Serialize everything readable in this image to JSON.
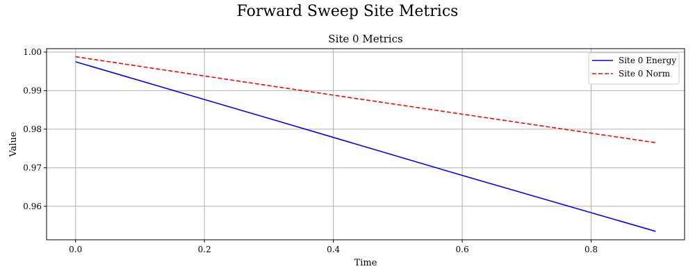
{
  "figure_title": "Forward Sweep Site Metrics",
  "chart_data": {
    "type": "line",
    "title": "Site 0 Metrics",
    "xlabel": "Time",
    "ylabel": "Value",
    "xlim": [
      -0.045,
      0.945
    ],
    "ylim": [
      0.9513,
      1.0009
    ],
    "xticks": [
      0.0,
      0.2,
      0.4,
      0.6,
      0.8
    ],
    "xtick_labels": [
      "0.0",
      "0.2",
      "0.4",
      "0.6",
      "0.8"
    ],
    "yticks": [
      0.96,
      0.97,
      0.98,
      0.99,
      1.0
    ],
    "ytick_labels": [
      "0.96",
      "0.97",
      "0.98",
      "0.99",
      "1.00"
    ],
    "grid": true,
    "legend_position": "top-right",
    "series": [
      {
        "name": "Site 0 Energy",
        "color": "#0000ff",
        "style": "solid",
        "x": [
          0.0,
          0.3,
          0.6,
          0.9
        ],
        "y": [
          0.9975,
          0.9828,
          0.968,
          0.9535
        ]
      },
      {
        "name": "Site 0 Norm",
        "color": "#ff0000",
        "style": "dashed",
        "x": [
          0.0,
          0.3,
          0.6,
          0.9
        ],
        "y": [
          0.9988,
          0.9913,
          0.9839,
          0.9765
        ]
      }
    ]
  }
}
